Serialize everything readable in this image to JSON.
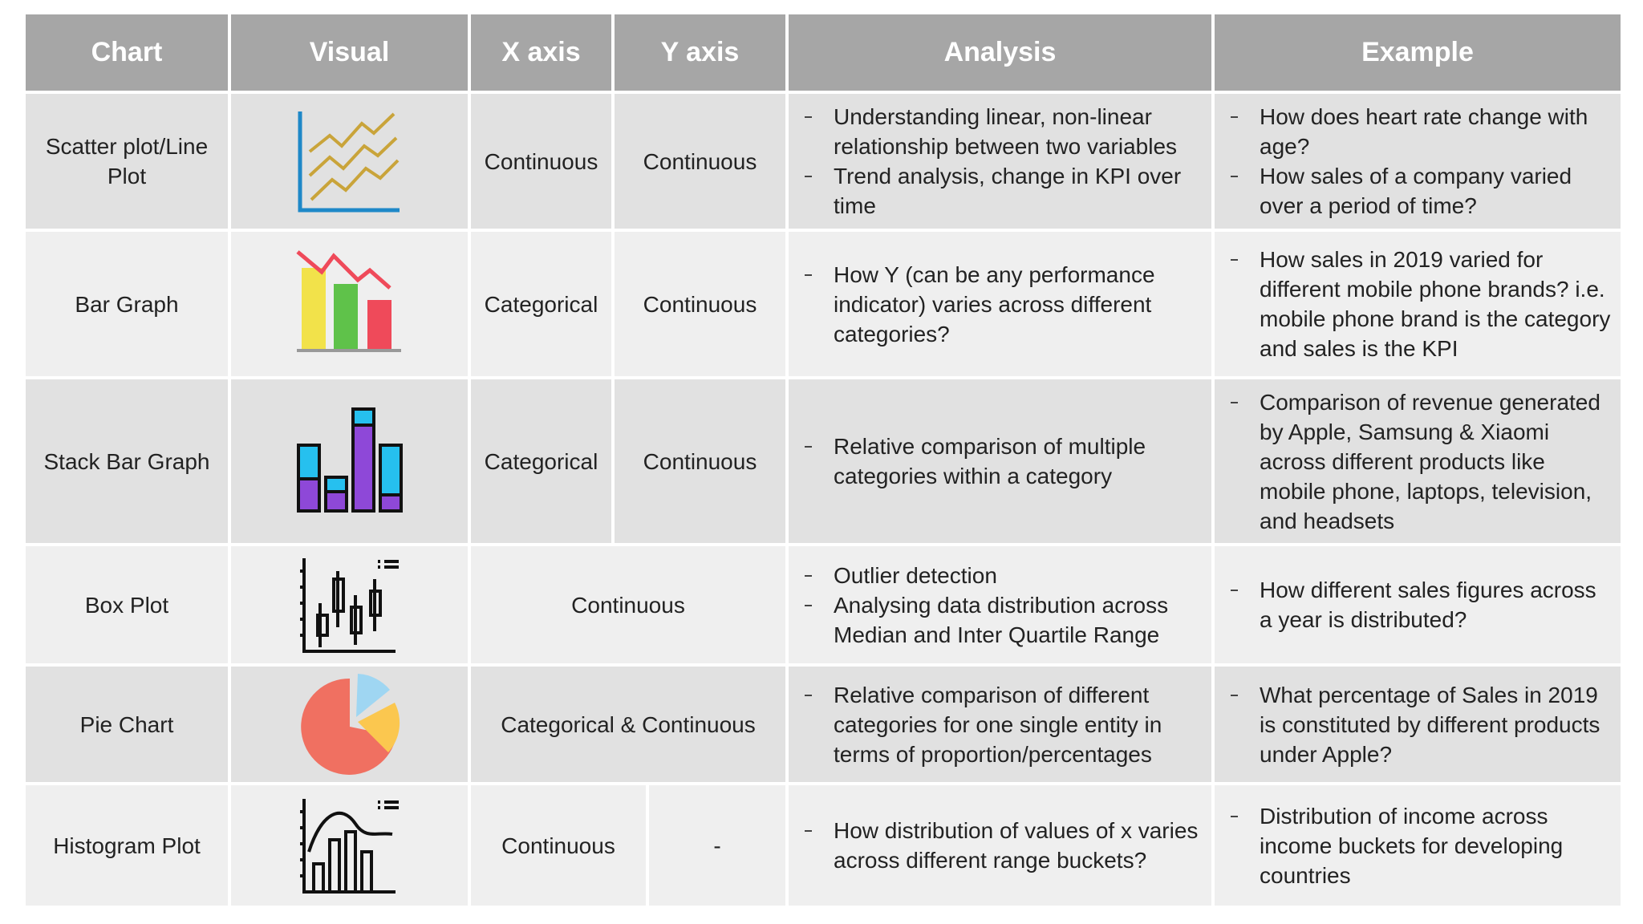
{
  "header": [
    "Chart",
    "Visual",
    "X axis",
    "Y axis",
    "Analysis",
    "Example"
  ],
  "rows": [
    {
      "chart": "Scatter plot/Line Plot",
      "x": "Continuous",
      "y": "Continuous",
      "analysis": [
        "Understanding linear, non-linear relationship between two variables",
        "Trend analysis, change in KPI over time"
      ],
      "example": [
        "How does heart rate change with age?",
        "How sales of a company varied over a period of time?"
      ]
    },
    {
      "chart": "Bar Graph",
      "x": "Categorical",
      "y": "Continuous",
      "analysis": [
        "How Y (can be any performance indicator) varies across different categories?"
      ],
      "example": [
        "How sales in 2019 varied for different mobile phone brands? i.e. mobile phone brand is the category and sales is the KPI"
      ]
    },
    {
      "chart": "Stack Bar Graph",
      "x": "Categorical",
      "y": "Continuous",
      "analysis": [
        "Relative comparison of multiple categories within a category"
      ],
      "example": [
        "Comparison of revenue generated by Apple, Samsung & Xiaomi across different products like mobile phone, laptops, television, and headsets"
      ]
    },
    {
      "chart": "Box Plot",
      "xy": "Continuous",
      "analysis": [
        "Outlier detection",
        "Analysing data distribution across Median and Inter Quartile Range"
      ],
      "example": [
        "How different sales figures across a year is distributed?"
      ]
    },
    {
      "chart": "Pie Chart",
      "xy": "Categorical & Continuous",
      "analysis": [
        "Relative comparison of different categories for one single entity in terms of proportion/percentages"
      ],
      "example": [
        "What percentage of Sales in 2019 is constituted by different products under Apple?"
      ]
    },
    {
      "chart": "Histogram Plot",
      "x": "Continuous",
      "y": "-",
      "analysis": [
        "How distribution of values of x varies across different range buckets?"
      ],
      "example": [
        "Distribution of income across income buckets for developing countries"
      ]
    }
  ]
}
